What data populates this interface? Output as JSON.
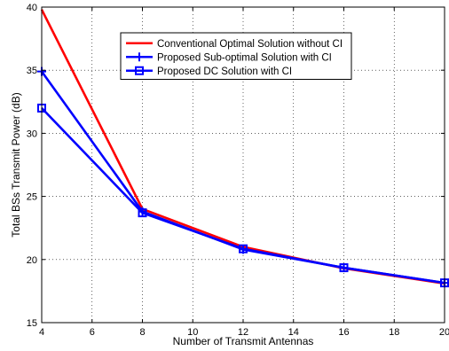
{
  "chart_data": {
    "type": "line",
    "title": "",
    "xlabel": "Number of Transmit Antennas",
    "ylabel": "Total BSs Transmit Power (dB)",
    "xlim": [
      4,
      20
    ],
    "ylim": [
      15,
      40
    ],
    "xticks": [
      4,
      6,
      8,
      10,
      12,
      14,
      16,
      18,
      20
    ],
    "yticks": [
      15,
      20,
      25,
      30,
      35,
      40
    ],
    "grid": true,
    "grid_style": "dotted",
    "legend_position": "top-center",
    "x": [
      4,
      8,
      12,
      16,
      20
    ],
    "series": [
      {
        "name": "Conventional Optimal Solution without CI",
        "values": [
          39.8,
          24.0,
          21.0,
          19.3,
          18.1
        ],
        "color": "#ff0000",
        "marker": "none"
      },
      {
        "name": "Proposed Sub-optimal Solution with CI",
        "values": [
          34.9,
          23.8,
          20.8,
          19.35,
          18.15
        ],
        "color": "#0000ff",
        "marker": "plus"
      },
      {
        "name": "Proposed DC Solution with CI",
        "values": [
          32.0,
          23.7,
          20.85,
          19.35,
          18.15
        ],
        "color": "#0000ff",
        "marker": "square"
      }
    ]
  }
}
